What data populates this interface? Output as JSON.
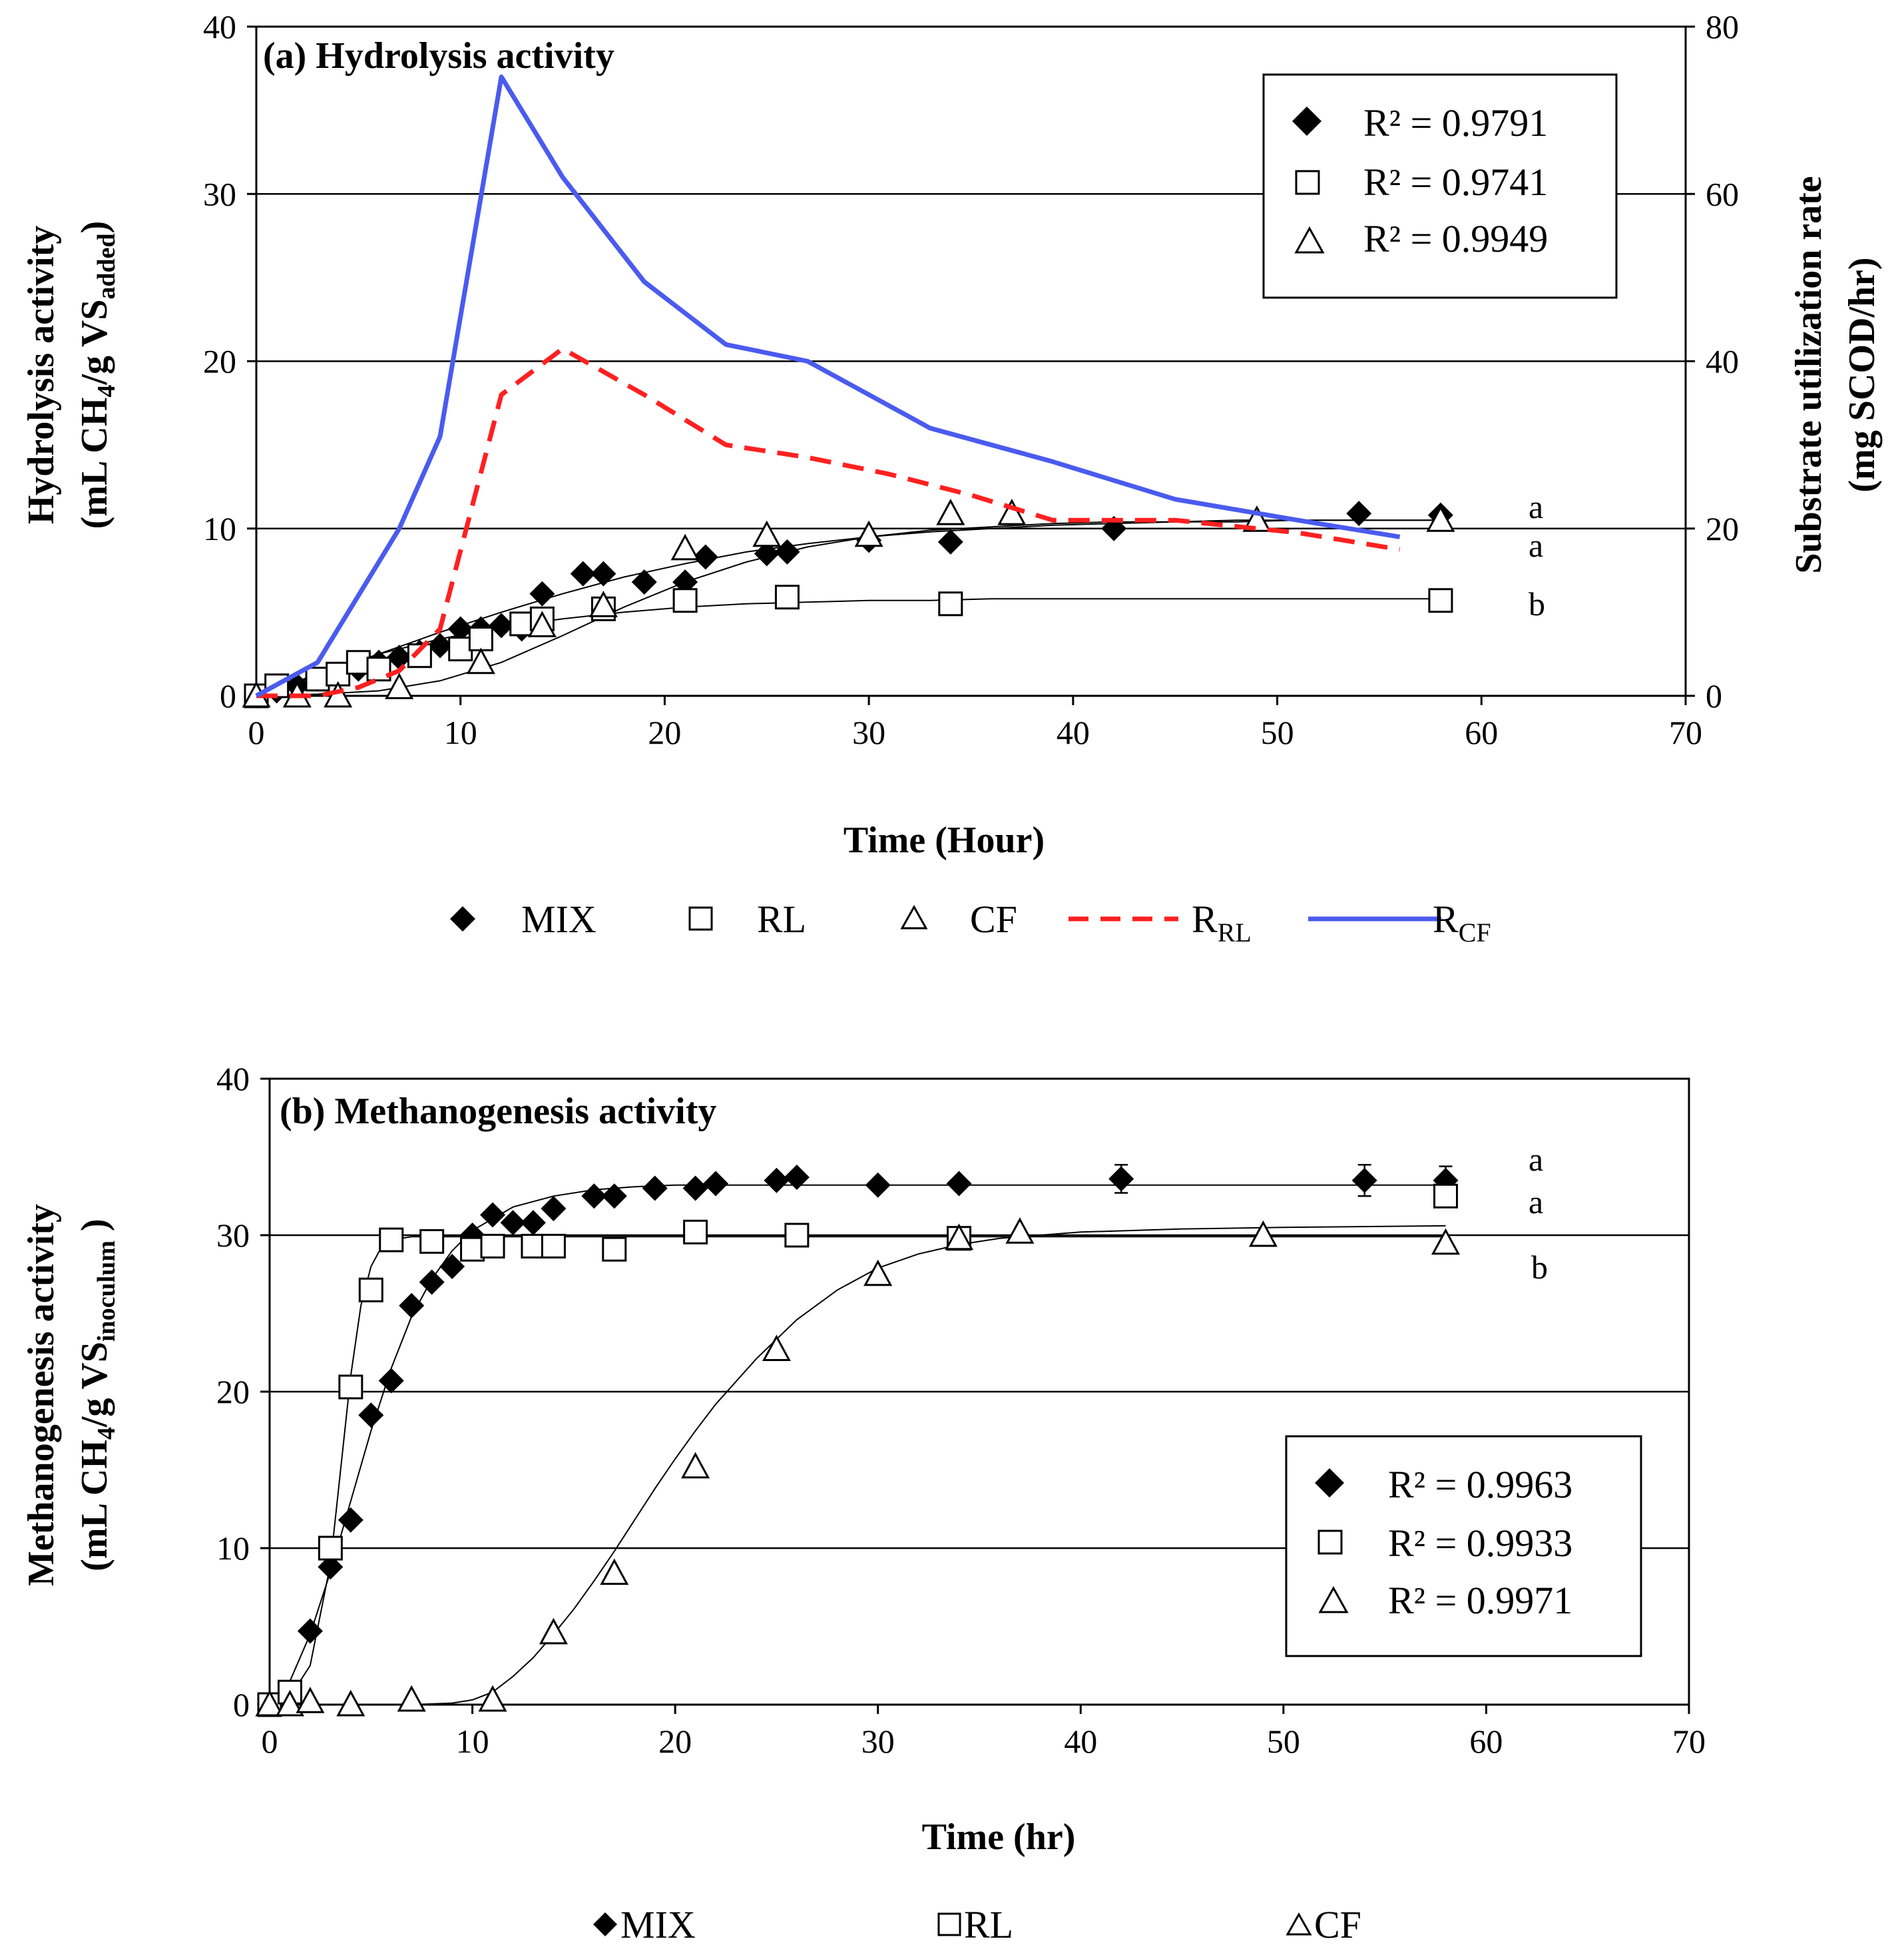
{
  "chart_data": [
    {
      "type": "scatter",
      "panel": "a",
      "title": "(a) Hydrolysis activity",
      "xlabel": "Time (Hour)",
      "ylabel_line1": "Hydrolysis activity",
      "ylabel_line2_main": "(mL CH",
      "ylabel_line2_sub1": "4",
      "ylabel_line2_mid": "/g VS",
      "ylabel_line2_sub2": "added",
      "ylabel_line2_end": ")",
      "y2label_line1": "Substrate utilization rate",
      "y2label_line2": "(mg SCOD/hr)",
      "xlim": [
        0,
        70
      ],
      "ylim": [
        0,
        40
      ],
      "y2lim": [
        0,
        80
      ],
      "xticks": [
        "0",
        "10",
        "20",
        "30",
        "40",
        "50",
        "60",
        "70"
      ],
      "yticks": [
        "0",
        "10",
        "20",
        "30",
        "40"
      ],
      "y2ticks": [
        "0",
        "20",
        "40",
        "60",
        "80"
      ],
      "series": [
        {
          "name": "MIX",
          "marker": "diamond",
          "x": [
            0,
            1,
            2,
            3,
            4,
            5,
            6,
            7,
            8,
            9,
            10,
            11,
            12,
            13,
            14,
            16,
            17,
            19,
            21,
            22,
            25,
            26,
            30,
            34,
            42,
            54,
            58
          ],
          "y": [
            0,
            0.3,
            0.6,
            1.0,
            1.3,
            1.6,
            2.0,
            2.3,
            2.6,
            3.0,
            4.0,
            4.0,
            4.2,
            4.0,
            6.1,
            7.3,
            7.3,
            6.8,
            6.8,
            8.3,
            8.5,
            8.6,
            9.3,
            9.2,
            10.0,
            10.9,
            10.8
          ],
          "fit": [
            0,
            1.2,
            2.5,
            3.8,
            5.0,
            6.1,
            7.1,
            7.9,
            8.6,
            9.1,
            9.5,
            9.8,
            10.0,
            10.2,
            10.3,
            10.4,
            10.4,
            10.5,
            10.5,
            10.5
          ]
        },
        {
          "name": "RL",
          "marker": "square",
          "x": [
            0,
            1,
            3,
            4,
            5,
            6,
            8,
            10,
            11,
            13,
            14,
            17,
            21,
            26,
            34,
            58
          ],
          "y": [
            0,
            0.6,
            1.0,
            1.3,
            2.0,
            1.6,
            2.4,
            2.8,
            3.4,
            4.3,
            4.6,
            5.2,
            5.7,
            5.9,
            5.5,
            5.7
          ],
          "fit": [
            0,
            1.3,
            2.5,
            3.4,
            4.1,
            4.6,
            5.0,
            5.3,
            5.5,
            5.6,
            5.7,
            5.7,
            5.8,
            5.8,
            5.8,
            5.8,
            5.8,
            5.8,
            5.8,
            5.8
          ]
        },
        {
          "name": "CF",
          "marker": "triangle",
          "x": [
            0,
            2,
            4,
            7,
            11,
            14,
            17,
            21,
            25,
            30,
            34,
            37,
            49,
            58
          ],
          "y": [
            0,
            0,
            0,
            0.5,
            2.0,
            4.2,
            5.4,
            8.8,
            9.6,
            9.6,
            10.9,
            10.9,
            10.5,
            10.5
          ],
          "fit": [
            0,
            0.1,
            0.3,
            0.9,
            2.0,
            3.6,
            5.3,
            6.8,
            8.0,
            8.9,
            9.5,
            9.9,
            10.1,
            10.3,
            10.4,
            10.4,
            10.5,
            10.5,
            10.5,
            10.5
          ]
        },
        {
          "name": "R_RL",
          "axis": "right",
          "style": "dashed",
          "color": "#ff2020",
          "x": [
            0,
            3,
            5,
            7,
            9,
            12,
            15,
            19,
            23,
            27,
            31,
            35,
            39,
            45,
            51,
            56
          ],
          "y": [
            0,
            0,
            1,
            3,
            8,
            36,
            41.5,
            36,
            30,
            28.5,
            26.5,
            24,
            21,
            21,
            19.5,
            17.5
          ]
        },
        {
          "name": "R_CF",
          "axis": "right",
          "style": "solid",
          "color": "#4a5bef",
          "x": [
            0,
            3,
            5,
            7,
            9,
            12,
            15,
            19,
            23,
            27,
            33,
            39,
            45,
            51,
            56
          ],
          "y": [
            0,
            4,
            12,
            20,
            31,
            74,
            62,
            49.5,
            42,
            40,
            32,
            28,
            23.5,
            21,
            19
          ]
        }
      ],
      "fit_x": [
        0,
        3,
        6,
        9,
        12,
        15,
        18,
        21,
        24,
        27,
        30,
        33,
        36,
        39,
        42,
        45,
        48,
        51,
        54,
        58
      ],
      "stats": [
        "R² = 0.9791",
        "R² = 0.9741",
        "R² = 0.9949"
      ],
      "group_letters": [
        "a",
        "a",
        "b"
      ],
      "legend_labels": [
        "MIX",
        "RL",
        "CF",
        "R",
        "R"
      ],
      "legend_subs": [
        "RL",
        "CF"
      ]
    },
    {
      "type": "scatter",
      "panel": "b",
      "title": "(b) Methanogenesis activity",
      "xlabel": "Time (hr)",
      "ylabel_line1": "Methanogenesis activity",
      "ylabel_line2_main": "(mL CH",
      "ylabel_line2_sub1": "4",
      "ylabel_line2_mid": "/g VS",
      "ylabel_line2_sub2": "inoculum",
      "ylabel_line2_end": " )",
      "xlim": [
        0,
        70
      ],
      "ylim": [
        0,
        40
      ],
      "xticks": [
        "0",
        "10",
        "20",
        "30",
        "40",
        "50",
        "60",
        "70"
      ],
      "yticks": [
        "0",
        "10",
        "20",
        "30",
        "40"
      ],
      "series": [
        {
          "name": "MIX",
          "marker": "diamond",
          "x": [
            0,
            1,
            2,
            3,
            4,
            5,
            6,
            7,
            8,
            9,
            10,
            11,
            12,
            13,
            14,
            16,
            17,
            19,
            21,
            22,
            25,
            26,
            30,
            34,
            42,
            54,
            58
          ],
          "y": [
            0,
            0.5,
            4.7,
            8.8,
            11.8,
            18.5,
            20.7,
            25.5,
            27.0,
            28.0,
            30.0,
            31.3,
            30.8,
            30.8,
            31.7,
            32.5,
            32.5,
            33.0,
            33.0,
            33.3,
            33.5,
            33.7,
            33.2,
            33.3,
            33.6,
            33.5,
            33.5
          ],
          "err": [
            0,
            0,
            0,
            0,
            0,
            0,
            0,
            0,
            0,
            0,
            0,
            0,
            0,
            0,
            0,
            0,
            0,
            0,
            0,
            0,
            0,
            0,
            0,
            0,
            0.9,
            1.0,
            0.9
          ]
        },
        {
          "name": "RL",
          "marker": "square",
          "x": [
            0,
            1,
            3,
            4,
            5,
            6,
            8,
            10,
            11,
            13,
            14,
            17,
            21,
            26,
            34,
            58
          ],
          "y": [
            0,
            0.8,
            10,
            20.3,
            26.5,
            29.7,
            29.6,
            29.1,
            29.3,
            29.3,
            29.3,
            29.1,
            30.2,
            30,
            29.8,
            32.5
          ]
        },
        {
          "name": "CF",
          "marker": "triangle",
          "x": [
            0,
            1,
            2,
            4,
            7,
            11,
            14,
            17,
            21,
            25,
            30,
            34,
            37,
            49,
            58
          ],
          "y": [
            0,
            0,
            0.2,
            0,
            0.3,
            0.3,
            4.6,
            8.4,
            15.2,
            22.7,
            27.5,
            29.8,
            30.2,
            30,
            29.5
          ]
        }
      ],
      "fits": [
        {
          "name": "MIX",
          "x": [
            0,
            1,
            2,
            3,
            4,
            5,
            6,
            7,
            8,
            9,
            10,
            12,
            14,
            16,
            18,
            20,
            25,
            30,
            40,
            50,
            58
          ],
          "y": [
            0,
            1.5,
            4.5,
            8.5,
            13,
            17.5,
            21.5,
            24.8,
            27.2,
            29,
            30.3,
            31.8,
            32.5,
            32.9,
            33.1,
            33.2,
            33.2,
            33.2,
            33.2,
            33.2,
            33.2
          ]
        },
        {
          "name": "RL",
          "x": [
            0,
            1,
            2,
            3,
            3.5,
            4,
            4.5,
            5,
            5.5,
            6,
            7,
            8,
            10,
            15,
            20,
            30,
            40,
            58
          ],
          "y": [
            0,
            0.5,
            2.5,
            9,
            15,
            21,
            25.5,
            28,
            29.2,
            29.7,
            29.9,
            29.9,
            29.9,
            29.9,
            29.9,
            29.9,
            29.9,
            29.9
          ]
        },
        {
          "name": "CF",
          "x": [
            0,
            4,
            7,
            9,
            10,
            11,
            12,
            13,
            14,
            15,
            16,
            17,
            18,
            19,
            20,
            21,
            22,
            24,
            26,
            28,
            30,
            32,
            34,
            36,
            40,
            45,
            50,
            58
          ],
          "y": [
            0,
            0,
            0,
            0.1,
            0.3,
            0.8,
            1.8,
            3.0,
            4.5,
            6.1,
            7.9,
            9.8,
            11.8,
            13.8,
            15.7,
            17.5,
            19.2,
            22.1,
            24.6,
            26.5,
            27.9,
            28.8,
            29.4,
            29.8,
            30.2,
            30.4,
            30.5,
            30.6
          ]
        }
      ],
      "stats": [
        "R² = 0.9963",
        "R² = 0.9933",
        "R² = 0.9971"
      ],
      "group_letters": [
        "a",
        "a",
        "b"
      ],
      "legend_labels": [
        "MIX",
        "RL",
        "CF"
      ]
    }
  ]
}
